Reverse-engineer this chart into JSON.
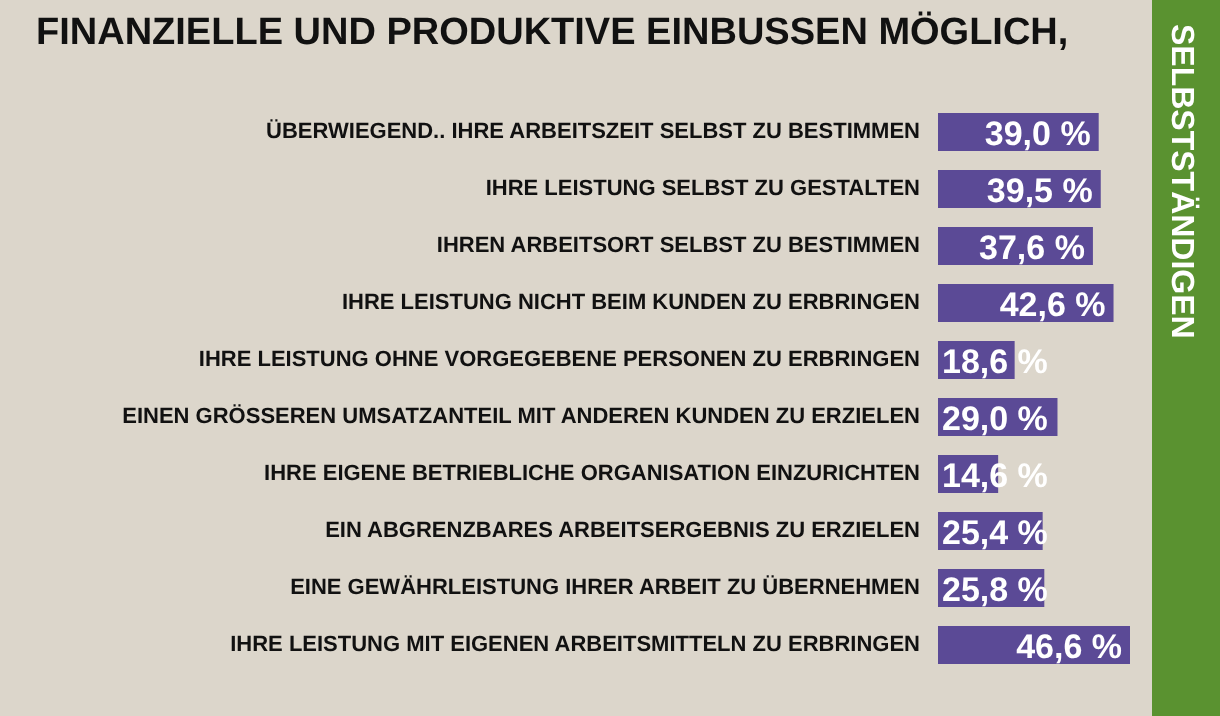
{
  "chart_data": {
    "type": "bar",
    "orientation": "horizontal",
    "title": "FINANZIELLE UND PRODUKTIVE EINBUSSEN MÖGLICH,",
    "annotations": [
      "SELBSTSTÄNDIGEN"
    ],
    "categories": [
      "ÜBERWIEGEND.. IHRE ARBEITSZEIT SELBST ZU BESTIMMEN",
      "IHRE LEISTUNG SELBST ZU GESTALTEN",
      "IHREN ARBEITSORT SELBST ZU BESTIMMEN",
      "IHRE LEISTUNG NICHT BEIM KUNDEN ZU ERBRINGEN",
      "IHRE LEISTUNG OHNE VORGEGEBENE PERSONEN ZU ERBRINGEN",
      "EINEN GRÖSSEREN UMSATZANTEIL MIT ANDEREN KUNDEN ZU ERZIELEN",
      "IHRE EIGENE BETRIEBLICHE ORGANISATION EINZURICHTEN",
      "EIN ABGRENZBARES ARBEITSERGEBNIS ZU ERZIELEN",
      "EINE GEWÄHRLEISTUNG IHRER ARBEIT ZU ÜBERNEHMEN",
      "IHRE LEISTUNG MIT EIGENEN ARBEITSMITTELN ZU ERBRINGEN"
    ],
    "values": [
      39.0,
      39.5,
      37.6,
      42.6,
      18.6,
      29.0,
      14.6,
      25.4,
      25.8,
      46.6
    ],
    "value_labels": [
      "39,0 %",
      "39,5 %",
      "37,6 %",
      "42,6 %",
      "18,6 %",
      "29,0 %",
      "14,6 %",
      "25,4 %",
      "25,8 %",
      "46,6 %"
    ],
    "color": "#5b4a96"
  }
}
